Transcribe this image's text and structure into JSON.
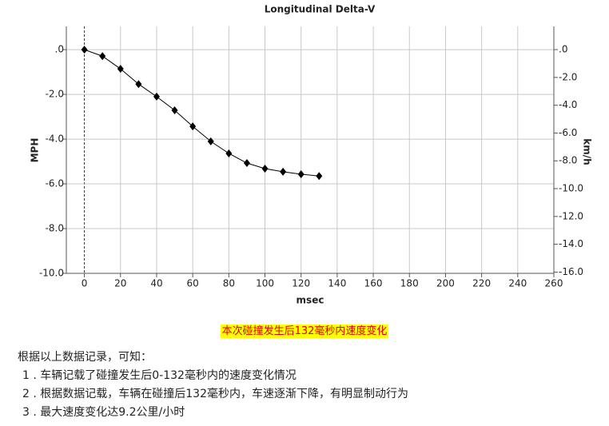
{
  "chart_data": {
    "type": "line",
    "title": "Longitudinal Delta-V",
    "x_label": "msec",
    "y_label": "MPH",
    "y2_label": "km/h",
    "x": [
      0,
      10,
      20,
      30,
      40,
      50,
      60,
      70,
      80,
      90,
      100,
      110,
      120,
      130
    ],
    "series": [
      {
        "color": "#000000",
        "values": [
          0,
          -0.29,
          -0.86,
          -1.54,
          -2.1,
          -2.71,
          -3.43,
          -4.1,
          -4.64,
          -5.07,
          -5.32,
          -5.46,
          -5.57,
          -5.65
        ]
      }
    ],
    "xlim": [
      -10,
      260
    ],
    "xticks": [
      0,
      20,
      40,
      60,
      80,
      100,
      120,
      140,
      160,
      180,
      200,
      220,
      240,
      260
    ],
    "ylim": [
      -10,
      1.04
    ],
    "yticks": [
      {
        "value": 0,
        "label": ".0"
      },
      {
        "value": -2,
        "label": "-2.0"
      },
      {
        "value": -4,
        "label": "-4.0"
      },
      {
        "value": -6,
        "label": "-6.0"
      },
      {
        "value": -8,
        "label": "-8.0"
      },
      {
        "value": -10,
        "label": "-10.0"
      }
    ],
    "y2lim": [
      -16.09,
      1.67
    ],
    "y2ticks": [
      {
        "value": 0,
        "label": ".0"
      },
      {
        "value": -2,
        "label": "-2.0"
      },
      {
        "value": -4,
        "label": "-4.0"
      },
      {
        "value": -6,
        "label": "-6.0"
      },
      {
        "value": -8,
        "label": "-8.0"
      },
      {
        "value": -10,
        "label": "-10.0"
      },
      {
        "value": -12,
        "label": "-12.0"
      },
      {
        "value": -14,
        "label": "-14.0"
      },
      {
        "value": -16,
        "label": "-16.0"
      }
    ],
    "grid": true
  },
  "caption": "本次碰撞发生后132毫秒内速度变化",
  "intro": "根据以上数据记录，可知：",
  "items": [
    "1 . 车辆记载了碰撞发生后0-132毫秒内的速度变化情况",
    "2 . 根据数据记载，车辆在碰撞后132毫秒内，车速逐渐下降，有明显制动行为",
    "3 . 最大速度变化达9.2公里/小时"
  ]
}
